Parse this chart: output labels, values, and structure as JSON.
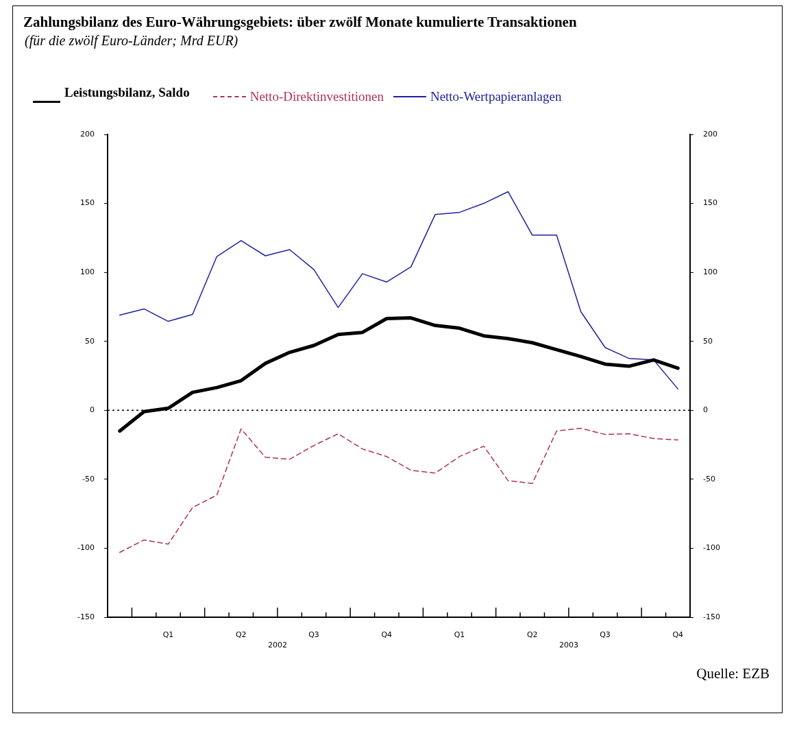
{
  "chart_data": {
    "type": "line",
    "title": "Zahlungsbilanz des Euro-Währungsgebiets: über zwölf Monate kumulierte Transaktionen",
    "subtitle": "(für die zwölf Euro-Länder; Mrd EUR)",
    "categories": [
      null,
      null,
      "Q1",
      null,
      null,
      "Q2",
      null,
      null,
      "Q3",
      null,
      null,
      "Q4",
      null,
      null,
      "Q1",
      null,
      null,
      "Q2",
      null,
      null,
      "Q3",
      null,
      null,
      "Q4"
    ],
    "series": [
      {
        "name": "Leistungsbilanz, Saldo",
        "color": "#000000",
        "line_style": "solid",
        "values": [
          -15,
          -1,
          1.5,
          13,
          16.5,
          21.5,
          34,
          42,
          47,
          55,
          56.5,
          66.5,
          67,
          61.5,
          59.5,
          54,
          52,
          49,
          44,
          39,
          33.5,
          32,
          36.5,
          30.5
        ]
      },
      {
        "name": "Netto-Direktinvestitionen",
        "color": "#b0305a",
        "line_style": "dashed",
        "values": [
          -103,
          -94,
          -97,
          -70.5,
          -61.5,
          -13.5,
          -34,
          -35.5,
          -25.5,
          -17,
          -28,
          -33.5,
          -43.5,
          -45.5,
          -33.5,
          -26,
          -51,
          -53,
          -15,
          -13,
          -17.5,
          -17,
          -20.5,
          -21.5
        ]
      },
      {
        "name": "Netto-Wertpapieranlagen",
        "color": "#2020a0",
        "line_style": "solid",
        "values": [
          69,
          73.5,
          64.5,
          69.5,
          111.5,
          123,
          112,
          116.5,
          102,
          74.5,
          99,
          93,
          104,
          142,
          143.5,
          150,
          158.5,
          127,
          127,
          71.5,
          45.5,
          37.5,
          36.5,
          15.5
        ]
      }
    ],
    "ylim": [
      -150,
      200
    ],
    "yticks": [
      -150,
      -100,
      -50,
      0,
      50,
      100,
      150,
      200
    ],
    "y2lim": [
      -150,
      200
    ],
    "y2ticks": [
      -150,
      -100,
      -50,
      0,
      50,
      100,
      150,
      200
    ],
    "ref_lines": [
      {
        "axis": "y",
        "value": 0,
        "color": "#000000",
        "line_style": "dotted"
      }
    ],
    "annotations": [
      {
        "text": "2002"
      },
      {
        "text": "2003"
      },
      "Quelle: EZB"
    ],
    "legend": "top",
    "grid": false,
    "marker": "none"
  }
}
